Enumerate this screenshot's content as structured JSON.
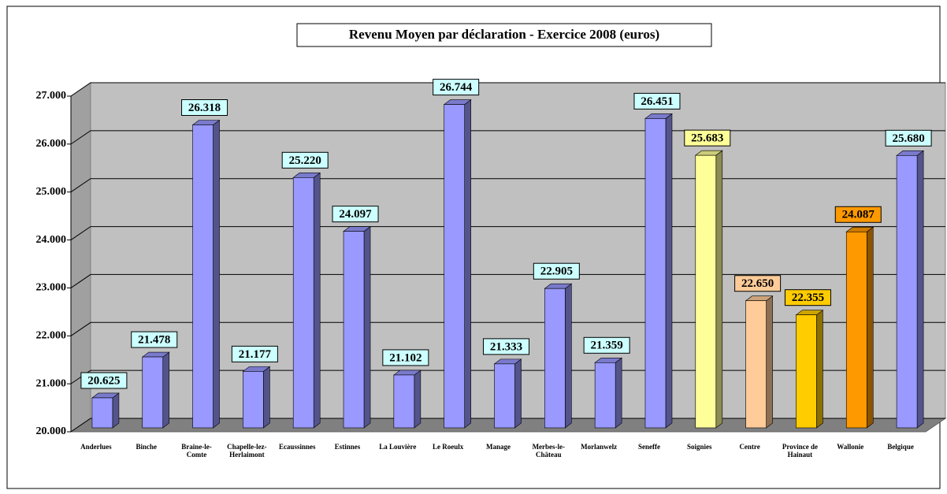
{
  "chart_data": {
    "type": "bar3d",
    "title": "Revenu Moyen par déclaration - Exercice 2008 (euros)",
    "categories": [
      "Anderlues",
      "Binche",
      "Braine-le-Comte",
      "Chapelle-lez-Herlaimont",
      "Ecaussinnes",
      "Estinnes",
      "La Louvière",
      "Le Roeulx",
      "Manage",
      "Merbes-le-Château",
      "Morlanwelz",
      "Seneffe",
      "Soignies",
      "Centre",
      "Province de Hainaut",
      "Wallonie",
      "Belgique"
    ],
    "values": [
      20625,
      21478,
      26318,
      21177,
      25220,
      24097,
      21102,
      26744,
      21333,
      22905,
      21359,
      26451,
      25683,
      22650,
      22355,
      24087,
      25680
    ],
    "value_labels": [
      "20.625",
      "21.478",
      "26.318",
      "21.177",
      "25.220",
      "24.097",
      "21.102",
      "26.744",
      "21.333",
      "22.905",
      "21.359",
      "26.451",
      "25.683",
      "22.650",
      "22.355",
      "24.087",
      "25.680"
    ],
    "colors": [
      "#9999ff",
      "#9999ff",
      "#9999ff",
      "#9999ff",
      "#9999ff",
      "#9999ff",
      "#9999ff",
      "#9999ff",
      "#9999ff",
      "#9999ff",
      "#9999ff",
      "#9999ff",
      "#ffff99",
      "#ffcc99",
      "#ffcc00",
      "#ff9900",
      "#9999ff"
    ],
    "label_colors": [
      "#ccffff",
      "#ccffff",
      "#ccffff",
      "#ccffff",
      "#ccffff",
      "#ccffff",
      "#ccffff",
      "#ccffff",
      "#ccffff",
      "#ccffff",
      "#ccffff",
      "#ccffff",
      "#ffff99",
      "#ffcc99",
      "#ffcc00",
      "#ff9900",
      "#ccffff"
    ],
    "ylim": [
      20000,
      27000
    ],
    "yticks": [
      {
        "value": 20000,
        "label": "20.000"
      },
      {
        "value": 21000,
        "label": "21.000"
      },
      {
        "value": 22000,
        "label": "22.000"
      },
      {
        "value": 23000,
        "label": "23.000"
      },
      {
        "value": 24000,
        "label": "24.000"
      },
      {
        "value": 25000,
        "label": "25.000"
      },
      {
        "value": 26000,
        "label": "26.000"
      },
      {
        "value": 27000,
        "label": "27.000"
      }
    ],
    "grid": true
  }
}
